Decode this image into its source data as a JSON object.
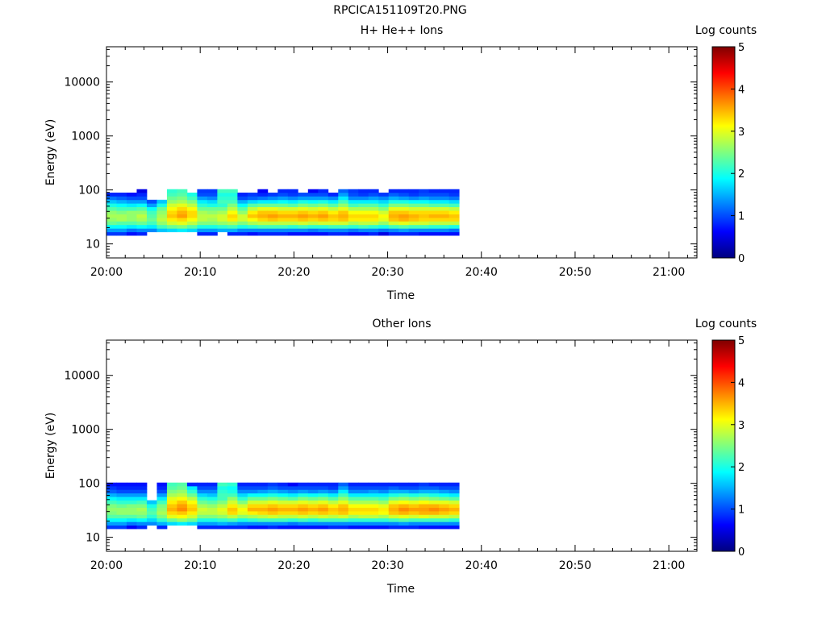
{
  "page": {
    "title": "RPCICA151109T20.PNG"
  },
  "colorscale": {
    "stops": [
      "#00007f",
      "#0000ff",
      "#007fff",
      "#00ffff",
      "#7fff7f",
      "#ffff00",
      "#ff7f00",
      "#ff0000",
      "#7f0000"
    ]
  },
  "chart_data": [
    {
      "type": "heatmap",
      "title": "H+ He++ Ions",
      "xlabel": "Time",
      "ylabel": "Energy (eV)",
      "x_ticks": [
        "20:00",
        "20:10",
        "20:20",
        "20:30",
        "20:40",
        "20:50",
        "21:00"
      ],
      "x_range_minutes": [
        0,
        63
      ],
      "y_scale": "log",
      "y_range": [
        5.5,
        45000
      ],
      "y_ticks": [
        "10",
        "100",
        "1000",
        "10000"
      ],
      "colorbar": {
        "label": "Log counts",
        "range": [
          0,
          5
        ],
        "ticks": [
          "0",
          "1",
          "2",
          "3",
          "4",
          "5"
        ]
      },
      "data": {
        "time_start_minutes": 0,
        "time_step_minutes": 1.075,
        "energy_levels_eV": [
          15.5,
          18,
          21,
          24.5,
          28.5,
          33,
          38.5,
          45,
          52.5,
          61,
          71,
          83,
          96
        ],
        "log_counts": [
          [
            0.9,
            1.4,
            1.9,
            2.4,
            2.6,
            2.7,
            2.6,
            2.3,
            2.0,
            1.6,
            1.2,
            0.8,
            null
          ],
          [
            0.9,
            1.4,
            1.9,
            2.3,
            2.7,
            2.7,
            2.5,
            2.2,
            1.9,
            1.5,
            1.1,
            0.8,
            null
          ],
          [
            0.7,
            1.2,
            1.8,
            2.3,
            2.6,
            2.6,
            2.6,
            2.2,
            1.8,
            1.4,
            1.0,
            0.7,
            null
          ],
          [
            0.8,
            1.3,
            1.9,
            2.4,
            2.7,
            2.8,
            2.6,
            2.3,
            1.9,
            1.4,
            1.0,
            0.8,
            0.5
          ],
          [
            null,
            1.3,
            1.8,
            2.2,
            2.4,
            2.3,
            2.2,
            1.9,
            1.4,
            1.0,
            null,
            null,
            null
          ],
          [
            null,
            1.6,
            2.2,
            2.6,
            2.8,
            2.7,
            2.6,
            2.4,
            2.0,
            1.6,
            null,
            null,
            null
          ],
          [
            null,
            1.7,
            2.4,
            2.9,
            3.2,
            3.4,
            3.3,
            3.1,
            2.9,
            2.6,
            2.4,
            2.2,
            2.1
          ],
          [
            null,
            1.8,
            2.5,
            3.0,
            3.3,
            3.6,
            3.5,
            3.3,
            3.0,
            2.7,
            2.5,
            2.3,
            2.2
          ],
          [
            null,
            1.7,
            2.3,
            2.8,
            3.1,
            3.3,
            3.3,
            3.1,
            2.8,
            2.5,
            2.2,
            2.0,
            null
          ],
          [
            0.8,
            1.4,
            2.0,
            2.5,
            2.8,
            2.8,
            2.7,
            2.4,
            2.1,
            1.8,
            1.4,
            1.0,
            0.9
          ],
          [
            0.8,
            1.4,
            2.0,
            2.5,
            2.7,
            2.8,
            2.6,
            2.4,
            2.0,
            1.7,
            1.3,
            1.0,
            0.9
          ],
          [
            null,
            1.5,
            2.1,
            2.6,
            2.9,
            2.9,
            2.7,
            2.4,
            2.1,
            2.2,
            2.1,
            2.0,
            2.2
          ],
          [
            0.8,
            1.5,
            2.2,
            2.7,
            3.2,
            3.3,
            3.1,
            2.8,
            2.5,
            2.2,
            2.1,
            2.0,
            2.2
          ],
          [
            0.8,
            1.3,
            2.0,
            2.5,
            2.9,
            2.9,
            2.6,
            2.3,
            1.9,
            1.5,
            1.0,
            0.8,
            null
          ],
          [
            0.7,
            1.3,
            2.1,
            2.7,
            3.1,
            3.4,
            3.2,
            2.8,
            2.3,
            1.7,
            1.1,
            0.9,
            null
          ],
          [
            0.8,
            1.3,
            2.2,
            2.8,
            3.3,
            3.5,
            3.4,
            3.0,
            2.4,
            1.8,
            1.2,
            0.8,
            0.6
          ],
          [
            0.8,
            1.3,
            2.2,
            2.8,
            3.4,
            3.6,
            3.4,
            3.0,
            2.4,
            1.8,
            1.3,
            0.9,
            null
          ],
          [
            0.8,
            1.3,
            2.2,
            2.8,
            3.3,
            3.5,
            3.3,
            2.9,
            2.4,
            1.9,
            1.4,
            1.0,
            0.8
          ],
          [
            0.7,
            1.3,
            2.1,
            2.8,
            3.3,
            3.5,
            3.3,
            2.9,
            2.3,
            1.8,
            1.3,
            0.9,
            0.8
          ],
          [
            0.7,
            1.3,
            2.2,
            2.9,
            3.4,
            3.6,
            3.4,
            3.0,
            2.5,
            2.0,
            1.4,
            1.0,
            null
          ],
          [
            0.7,
            1.2,
            2.1,
            2.8,
            3.3,
            3.5,
            3.3,
            2.9,
            2.4,
            1.9,
            1.4,
            1.0,
            0.6
          ],
          [
            0.7,
            1.3,
            2.1,
            2.9,
            3.4,
            3.6,
            3.4,
            3.0,
            2.5,
            2.0,
            1.4,
            1.0,
            0.8
          ],
          [
            0.8,
            1.3,
            2.2,
            2.9,
            3.3,
            3.4,
            3.2,
            2.8,
            2.3,
            1.8,
            1.3,
            0.8,
            null
          ],
          [
            0.8,
            1.3,
            2.2,
            2.9,
            3.4,
            3.5,
            3.4,
            3.0,
            2.6,
            2.2,
            1.8,
            1.4,
            1.1
          ],
          [
            0.7,
            1.2,
            2.1,
            2.7,
            3.2,
            3.3,
            3.1,
            2.7,
            2.2,
            1.8,
            1.3,
            1.0,
            0.9
          ],
          [
            0.7,
            1.3,
            2.2,
            2.8,
            3.2,
            3.3,
            3.1,
            2.7,
            2.3,
            1.8,
            1.3,
            0.9,
            0.8
          ],
          [
            0.8,
            1.3,
            2.1,
            2.8,
            3.2,
            3.3,
            3.1,
            2.7,
            2.3,
            1.8,
            1.4,
            1.0,
            0.8
          ],
          [
            0.5,
            1.2,
            2.0,
            2.6,
            3.0,
            3.1,
            2.9,
            2.5,
            2.1,
            1.7,
            1.3,
            0.9,
            null
          ],
          [
            0.8,
            1.3,
            2.2,
            2.9,
            3.4,
            3.5,
            3.4,
            3.0,
            2.5,
            2.0,
            1.5,
            1.1,
            0.8
          ],
          [
            0.8,
            1.4,
            2.3,
            3.0,
            3.5,
            3.6,
            3.4,
            3.0,
            2.5,
            2.0,
            1.4,
            1.0,
            0.8
          ],
          [
            0.8,
            1.3,
            2.2,
            2.9,
            3.4,
            3.5,
            3.3,
            2.9,
            2.4,
            1.9,
            1.3,
            0.9,
            0.8
          ],
          [
            0.7,
            1.3,
            2.2,
            2.9,
            3.3,
            3.4,
            3.3,
            2.9,
            2.4,
            1.9,
            1.4,
            1.0,
            0.9
          ],
          [
            0.7,
            1.3,
            2.1,
            2.8,
            3.3,
            3.5,
            3.3,
            2.9,
            2.3,
            1.8,
            1.3,
            1.0,
            0.8
          ],
          [
            0.7,
            1.3,
            2.1,
            2.8,
            3.3,
            3.5,
            3.3,
            2.9,
            2.3,
            1.8,
            1.3,
            1.0,
            0.8
          ],
          [
            0.7,
            1.2,
            2.0,
            2.8,
            3.3,
            3.4,
            3.2,
            2.8,
            2.2,
            1.7,
            1.2,
            0.9,
            0.8
          ]
        ]
      }
    },
    {
      "type": "heatmap",
      "title": "Other Ions",
      "xlabel": "Time",
      "ylabel": "Energy (eV)",
      "x_ticks": [
        "20:00",
        "20:10",
        "20:20",
        "20:30",
        "20:40",
        "20:50",
        "21:00"
      ],
      "x_range_minutes": [
        0,
        63
      ],
      "y_scale": "log",
      "y_range": [
        5.5,
        45000
      ],
      "y_ticks": [
        "10",
        "100",
        "1000",
        "10000"
      ],
      "colorbar": {
        "label": "Log counts",
        "range": [
          0,
          5
        ],
        "ticks": [
          "0",
          "1",
          "2",
          "3",
          "4",
          "5"
        ]
      },
      "data": {
        "time_start_minutes": 0,
        "time_step_minutes": 1.075,
        "energy_levels_eV": [
          15.5,
          18,
          21,
          24.5,
          28.5,
          33,
          38.5,
          45,
          52.5,
          61,
          71,
          83,
          96
        ],
        "log_counts": [
          [
            0.9,
            1.4,
            1.9,
            2.3,
            2.5,
            2.6,
            2.5,
            2.2,
            1.9,
            1.5,
            1.1,
            0.9,
            0.7
          ],
          [
            0.9,
            1.4,
            1.9,
            2.3,
            2.6,
            2.6,
            2.4,
            2.1,
            1.8,
            1.4,
            1.0,
            0.8,
            0.7
          ],
          [
            0.6,
            1.2,
            1.8,
            2.3,
            2.6,
            2.6,
            2.5,
            2.1,
            1.8,
            1.4,
            1.0,
            0.8,
            0.7
          ],
          [
            0.8,
            1.3,
            1.9,
            2.4,
            2.6,
            2.7,
            2.5,
            2.2,
            1.8,
            1.4,
            1.0,
            0.8,
            0.7
          ],
          [
            null,
            1.3,
            1.7,
            2.1,
            2.3,
            2.2,
            2.0,
            1.6,
            null,
            null,
            null,
            null,
            null
          ],
          [
            0.8,
            1.5,
            2.1,
            2.5,
            2.7,
            2.6,
            2.5,
            2.2,
            1.8,
            1.4,
            1.0,
            0.8,
            0.7
          ],
          [
            null,
            1.7,
            2.4,
            3.0,
            3.3,
            3.5,
            3.4,
            3.2,
            3.0,
            2.7,
            2.5,
            2.3,
            2.2
          ],
          [
            null,
            1.8,
            2.6,
            3.1,
            3.4,
            3.7,
            3.6,
            3.4,
            3.1,
            2.8,
            2.6,
            2.4,
            2.3
          ],
          [
            null,
            1.7,
            2.4,
            2.9,
            3.2,
            3.4,
            3.3,
            3.1,
            2.8,
            2.4,
            2.1,
            1.8,
            0.8
          ],
          [
            0.8,
            1.4,
            2.0,
            2.5,
            2.8,
            2.9,
            2.7,
            2.4,
            2.1,
            1.7,
            1.3,
            1.0,
            0.8
          ],
          [
            0.8,
            1.4,
            2.0,
            2.5,
            2.8,
            2.8,
            2.6,
            2.3,
            2.0,
            1.6,
            1.3,
            1.0,
            0.8
          ],
          [
            0.8,
            1.5,
            2.1,
            2.6,
            2.9,
            3.0,
            2.8,
            2.5,
            2.2,
            2.2,
            2.1,
            2.0,
            2.2
          ],
          [
            0.8,
            1.4,
            2.2,
            2.8,
            3.3,
            3.4,
            3.2,
            2.9,
            2.6,
            2.2,
            2.0,
            1.9,
            2.1
          ],
          [
            0.8,
            1.3,
            2.0,
            2.6,
            3.0,
            3.1,
            2.9,
            2.5,
            2.1,
            1.7,
            1.3,
            1.0,
            0.8
          ],
          [
            0.7,
            1.3,
            2.1,
            2.7,
            3.2,
            3.5,
            3.3,
            2.9,
            2.4,
            1.9,
            1.3,
            1.0,
            0.8
          ],
          [
            0.7,
            1.3,
            2.2,
            2.8,
            3.3,
            3.5,
            3.3,
            2.9,
            2.4,
            1.9,
            1.4,
            1.0,
            0.8
          ],
          [
            0.8,
            1.3,
            2.2,
            2.9,
            3.4,
            3.6,
            3.4,
            3.0,
            2.5,
            2.0,
            1.5,
            1.1,
            0.9
          ],
          [
            0.7,
            1.3,
            2.2,
            2.8,
            3.3,
            3.5,
            3.3,
            2.9,
            2.4,
            1.9,
            1.4,
            1.0,
            0.8
          ],
          [
            0.7,
            1.2,
            2.1,
            2.8,
            3.3,
            3.5,
            3.3,
            2.9,
            2.3,
            1.8,
            1.3,
            1.0,
            0.6
          ],
          [
            0.7,
            1.3,
            2.2,
            2.9,
            3.4,
            3.6,
            3.4,
            3.0,
            2.5,
            2.0,
            1.4,
            1.0,
            0.8
          ],
          [
            0.7,
            1.3,
            2.1,
            2.8,
            3.3,
            3.5,
            3.3,
            2.9,
            2.4,
            1.9,
            1.3,
            1.0,
            0.8
          ],
          [
            0.7,
            1.3,
            2.2,
            2.9,
            3.4,
            3.6,
            3.4,
            3.0,
            2.5,
            2.0,
            1.4,
            1.0,
            0.8
          ],
          [
            0.8,
            1.3,
            2.2,
            2.8,
            3.3,
            3.4,
            3.2,
            2.8,
            2.3,
            1.8,
            1.3,
            0.9,
            0.8
          ],
          [
            0.8,
            1.3,
            2.2,
            2.9,
            3.4,
            3.5,
            3.4,
            3.0,
            2.6,
            2.2,
            1.8,
            1.4,
            1.1
          ],
          [
            0.7,
            1.3,
            2.1,
            2.7,
            3.2,
            3.3,
            3.1,
            2.7,
            2.3,
            1.8,
            1.3,
            1.0,
            0.8
          ],
          [
            0.7,
            1.3,
            2.1,
            2.8,
            3.2,
            3.3,
            3.1,
            2.7,
            2.3,
            1.8,
            1.3,
            1.0,
            0.8
          ],
          [
            0.7,
            1.3,
            2.1,
            2.8,
            3.2,
            3.3,
            3.1,
            2.7,
            2.3,
            1.8,
            1.4,
            1.0,
            0.8
          ],
          [
            0.7,
            1.3,
            2.1,
            2.7,
            3.1,
            3.2,
            3.0,
            2.6,
            2.2,
            1.8,
            1.3,
            1.0,
            0.8
          ],
          [
            0.8,
            1.3,
            2.2,
            2.9,
            3.4,
            3.5,
            3.4,
            3.0,
            2.5,
            2.0,
            1.5,
            1.1,
            0.8
          ],
          [
            0.8,
            1.4,
            2.3,
            3.0,
            3.5,
            3.7,
            3.5,
            3.1,
            2.6,
            2.1,
            1.5,
            1.0,
            0.8
          ],
          [
            0.8,
            1.3,
            2.2,
            2.9,
            3.4,
            3.6,
            3.4,
            3.0,
            2.5,
            2.0,
            1.4,
            1.0,
            0.8
          ],
          [
            0.7,
            1.3,
            2.2,
            3.0,
            3.5,
            3.6,
            3.5,
            3.1,
            2.6,
            2.1,
            1.5,
            1.1,
            0.9
          ],
          [
            0.7,
            1.3,
            2.2,
            2.9,
            3.5,
            3.7,
            3.5,
            3.0,
            2.5,
            2.0,
            1.5,
            1.1,
            0.8
          ],
          [
            0.7,
            1.3,
            2.2,
            2.9,
            3.4,
            3.6,
            3.4,
            3.0,
            2.4,
            1.9,
            1.4,
            1.0,
            0.8
          ],
          [
            0.7,
            1.3,
            2.1,
            2.8,
            3.3,
            3.5,
            3.3,
            2.9,
            2.3,
            1.8,
            1.3,
            1.0,
            0.8
          ]
        ]
      }
    }
  ]
}
